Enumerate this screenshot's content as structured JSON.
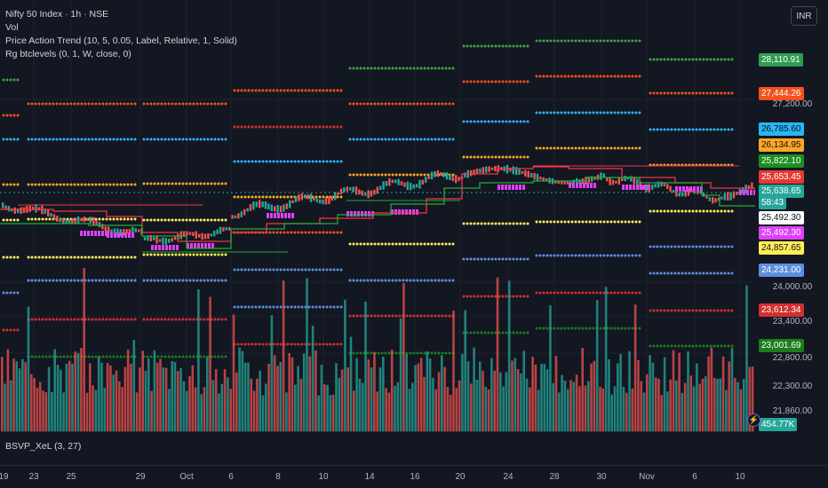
{
  "legend": {
    "symbol": "Nifty 50 Index · 1h · NSE",
    "vol": "Vol",
    "indicator1": "Price Action Trend (10, 5, 0.05, Label, Relative, 1, Solid)",
    "indicator2": "Rg btclevels (0, 1, W, close, 0)"
  },
  "currency": "INR",
  "volume_pane": {
    "label": "BSVP_XeL (3, 27)",
    "value": "454.77K",
    "icon": "lightning-icon"
  },
  "price_axis": {
    "ticks": [
      "27,200.00",
      "24,000.00",
      "23,400.00",
      "22,800.00",
      "22,300.00",
      "21,860.00"
    ],
    "labels": [
      {
        "text": "28,110.91",
        "bg": "#2e9e4e",
        "fg": "#ffffff"
      },
      {
        "text": "27,444.26",
        "bg": "#f4511e",
        "fg": "#ffffff"
      },
      {
        "text": "26,785.60",
        "bg": "#29b6f6",
        "fg": "#0b0e14"
      },
      {
        "text": "26,134.95",
        "bg": "#ffa726",
        "fg": "#0b0e14"
      },
      {
        "text": "25,822.10",
        "bg": "#1b8f1f",
        "fg": "#ffffff"
      },
      {
        "text": "25,653.45",
        "bg": "#e53935",
        "fg": "#ffffff"
      },
      {
        "text": "25,638.65",
        "bg": "#26a69a",
        "fg": "#ffffff"
      },
      {
        "text": "58:43",
        "bg": "#26a69a",
        "fg": "#ffffff"
      },
      {
        "text": "25,492.30",
        "bg": "#ffffff",
        "fg": "#0b0e14"
      },
      {
        "text": "25,492.30",
        "bg": "#e040fb",
        "fg": "#ffffff"
      },
      {
        "text": "24,857.65",
        "bg": "#ffee58",
        "fg": "#0b0e14"
      },
      {
        "text": "24,231.00",
        "bg": "#5c8fe0",
        "fg": "#ffffff"
      },
      {
        "text": "23,612.34",
        "bg": "#d32f2f",
        "fg": "#ffffff"
      },
      {
        "text": "23,001.69",
        "bg": "#1b7d1e",
        "fg": "#ffffff"
      }
    ]
  },
  "time_axis": [
    "19",
    "23",
    "25",
    "29",
    "Oct",
    "6",
    "8",
    "10",
    "14",
    "16",
    "20",
    "24",
    "28",
    "30",
    "Nov",
    "6",
    "10"
  ],
  "colors": {
    "background": "#131722",
    "level_green": "#43a047",
    "level_orange": "#f4511e",
    "level_cyan": "#29b6f6",
    "level_amber": "#ffa726",
    "level_yellow": "#ffee58",
    "level_blue": "#5c8fe0",
    "level_red": "#d32f2f",
    "level_darkgreen": "#1b7d1e",
    "trend_red": "#f23645",
    "trend_green": "#22ab38",
    "candle_up": "#26a69a",
    "candle_down": "#ef5350",
    "pivot": "#e040fb",
    "volume_up": "#26a69a",
    "volume_down": "#ef5350"
  }
}
